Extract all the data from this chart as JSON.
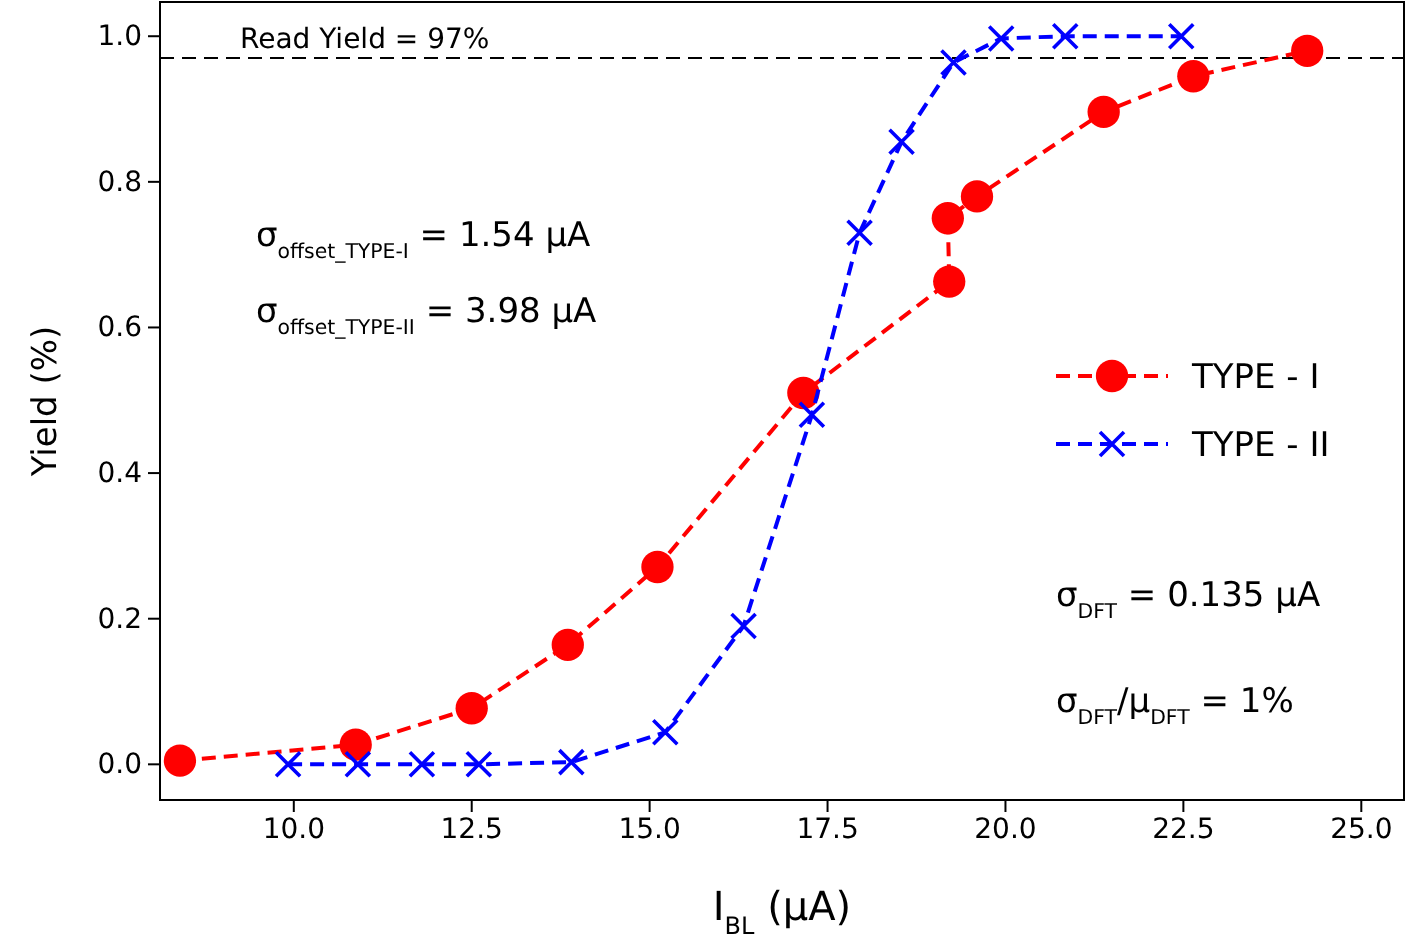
{
  "chart_data": {
    "type": "line",
    "xlabel": "I$_{BL}$ (μA)",
    "ylabel": "Yield (%)",
    "xlim": [
      8.12,
      25.6
    ],
    "xticks": [
      {
        "value": 10,
        "label": "10.0"
      },
      12.5,
      {
        "value": 15,
        "label": "15.0"
      },
      17.5,
      {
        "value": 20,
        "label": "20.0"
      },
      22.5,
      {
        "value": 25,
        "label": "25.0"
      }
    ],
    "ylim": [
      -0.049,
      1.047
    ],
    "yticks": [
      {
        "value": 0,
        "label": "0.0"
      },
      0.2,
      0.4,
      0.6,
      0.8,
      {
        "value": 1,
        "label": "1.0"
      }
    ],
    "series": [
      {
        "name": "TYPE - I",
        "color": "#ff0000",
        "marker": "circle",
        "x": [
          8.4,
          10.87,
          12.5,
          13.85,
          15.11,
          17.16,
          19.21,
          19.19,
          19.6,
          21.38,
          22.64,
          24.24
        ],
        "values": [
          0.005,
          0.027,
          0.077,
          0.164,
          0.271,
          0.51,
          0.663,
          0.75,
          0.78,
          0.896,
          0.945,
          0.98
        ]
      },
      {
        "name": "TYPE - II",
        "color": "#0000ff",
        "marker": "cross",
        "x": [
          9.92,
          10.9,
          11.8,
          12.6,
          13.9,
          15.22,
          16.32,
          17.28,
          17.95,
          18.54,
          19.27,
          19.94,
          20.84,
          22.47
        ],
        "values": [
          0,
          0,
          0,
          0,
          0.003,
          0.044,
          0.19,
          0.48,
          0.73,
          0.855,
          0.964,
          0.997,
          1.0,
          1.0
        ]
      }
    ],
    "line_style": "dashed",
    "legend": "right",
    "grid": false,
    "ref_lines": [
      {
        "axis": "y",
        "value": 0.97,
        "label": "Read Yield = 97%",
        "color": "#000000",
        "line_style": "dashed"
      }
    ],
    "annotations": [
      "σ$_{offset_TYPE-I}$ = 1.54 μA",
      "σ$_{offset_TYPE-II}$ = 3.98 μA",
      "σ$_{DFT}$ = 0.135 μA",
      "σ$_{DFT}$/μ$_{DFT}$ = 1%"
    ]
  }
}
